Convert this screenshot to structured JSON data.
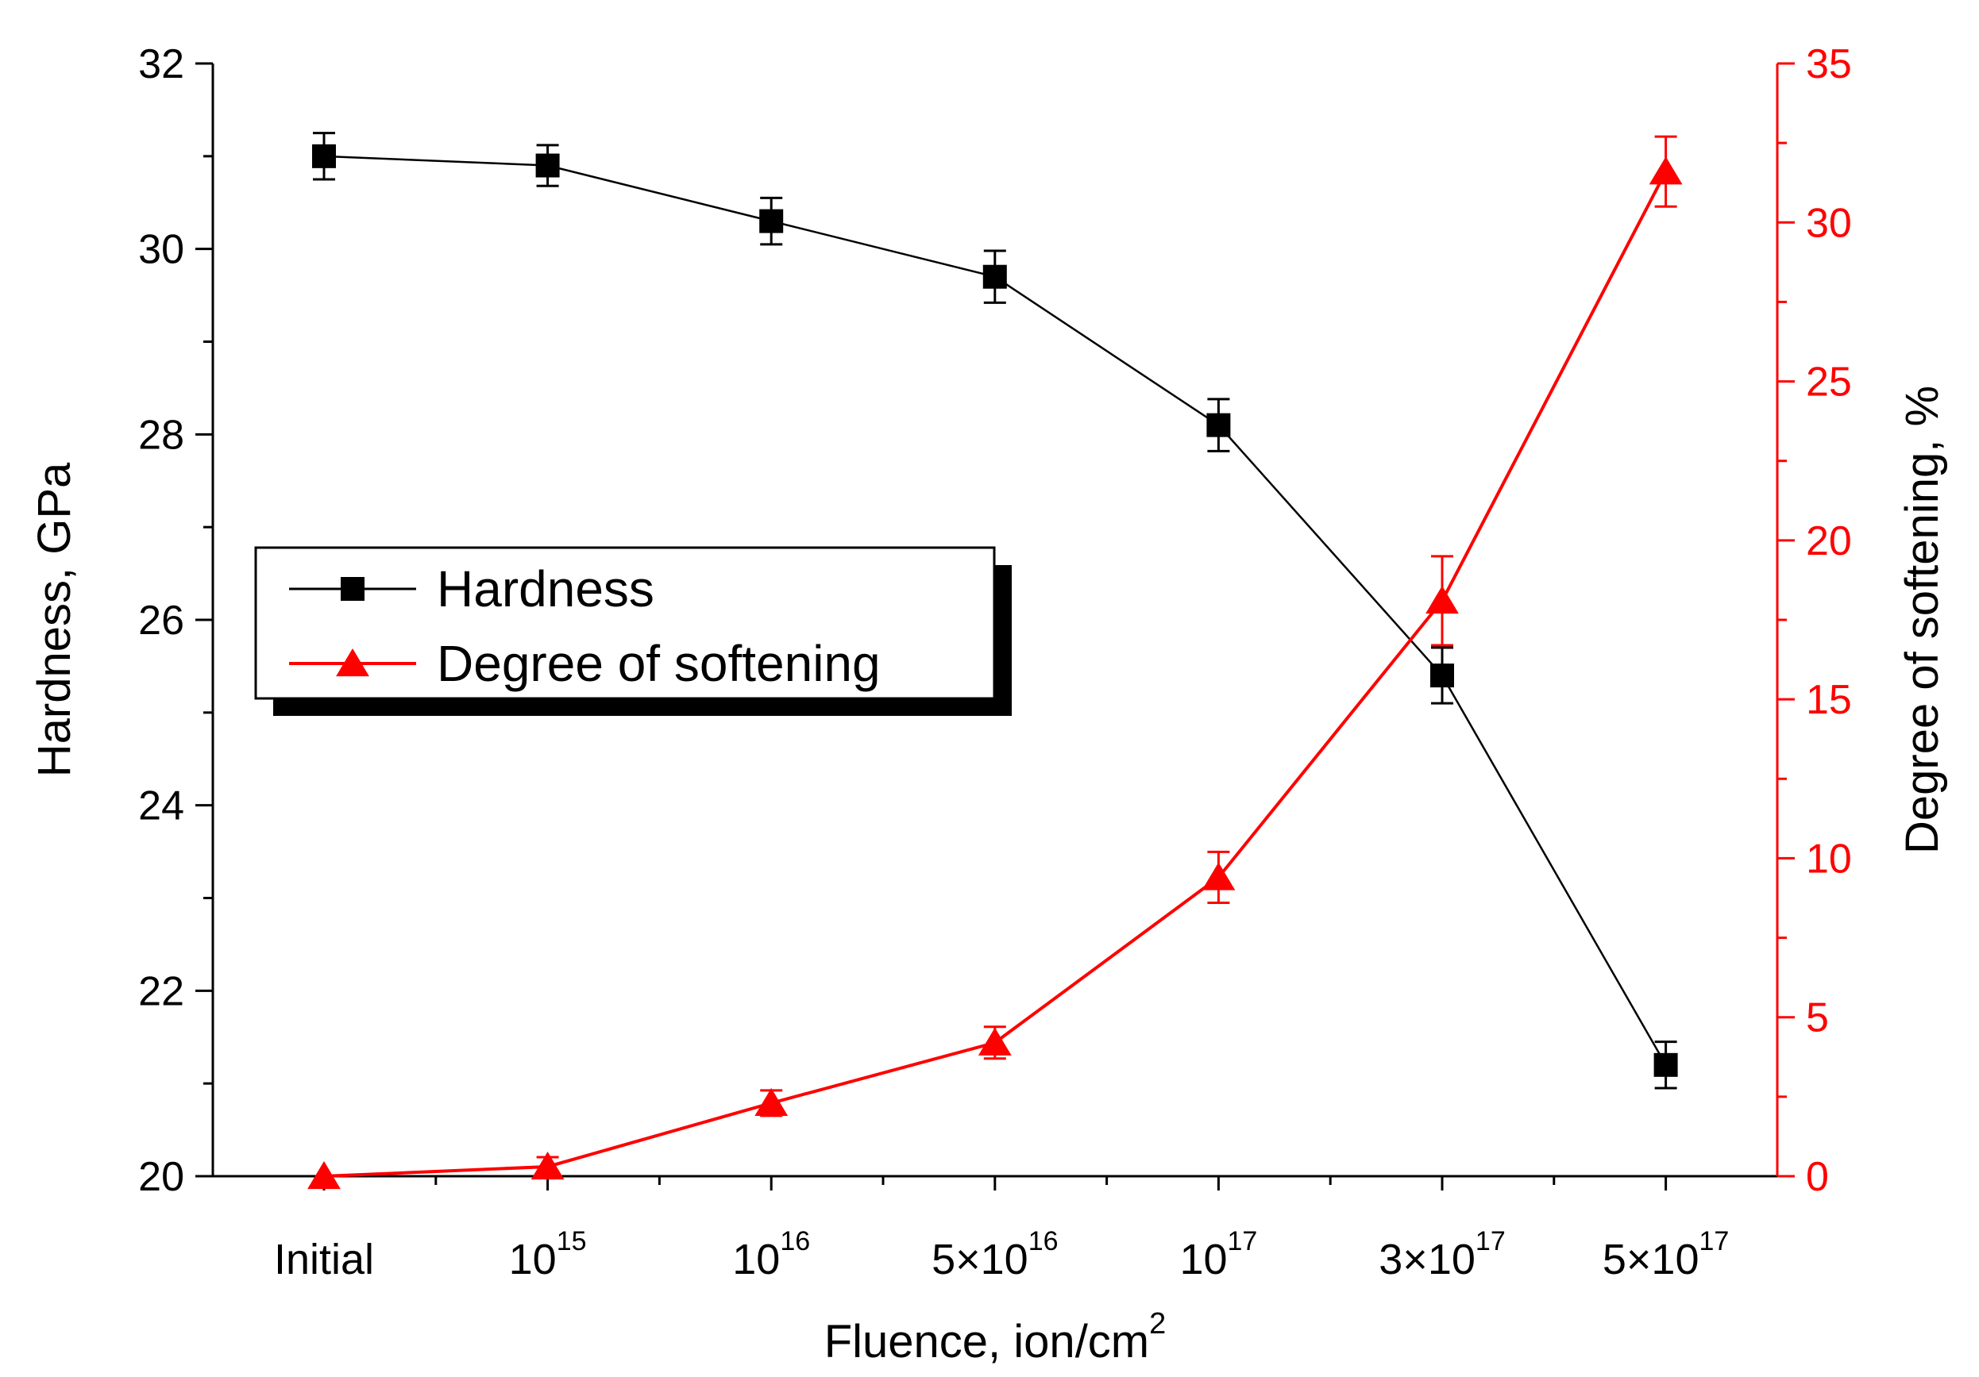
{
  "chart_data": {
    "type": "line",
    "xlabel": "Fluence, ion/cm",
    "xlabel_sup": "2",
    "categories": [
      {
        "base": "Initial",
        "sup": ""
      },
      {
        "base": "10",
        "sup": "15"
      },
      {
        "base": "10",
        "sup": "16"
      },
      {
        "base": "5×10",
        "sup": "16"
      },
      {
        "base": "10",
        "sup": "17"
      },
      {
        "base": "3×10",
        "sup": "17"
      },
      {
        "base": "5×10",
        "sup": "17"
      }
    ],
    "y_left": {
      "label": "Hardness, GPa",
      "lim": [
        20,
        32
      ],
      "ticks": [
        "20",
        "22",
        "24",
        "26",
        "28",
        "30",
        "32"
      ],
      "color": "#000000"
    },
    "y_right": {
      "label": "Degree of softening, %",
      "lim": [
        0,
        35
      ],
      "ticks": [
        "0",
        "5",
        "10",
        "15",
        "20",
        "25",
        "30",
        "35"
      ],
      "color": "#ff0000"
    },
    "series": [
      {
        "name": "Hardness",
        "axis": "left",
        "marker": "square",
        "color": "#000000",
        "values": [
          31.0,
          30.9,
          30.3,
          29.7,
          28.1,
          25.4,
          21.2
        ],
        "errors": [
          0.25,
          0.22,
          0.25,
          0.28,
          0.28,
          0.3,
          0.25
        ]
      },
      {
        "name": "Degree of softening",
        "axis": "right",
        "marker": "triangle",
        "color": "#ff0000",
        "values": [
          0.0,
          0.3,
          2.3,
          4.2,
          9.4,
          18.1,
          31.6
        ],
        "errors": [
          0.0,
          0.3,
          0.4,
          0.5,
          0.8,
          1.4,
          1.1
        ]
      }
    ],
    "legend": {
      "position": "left-middle",
      "items": [
        "Hardness",
        "Degree of softening"
      ]
    }
  }
}
